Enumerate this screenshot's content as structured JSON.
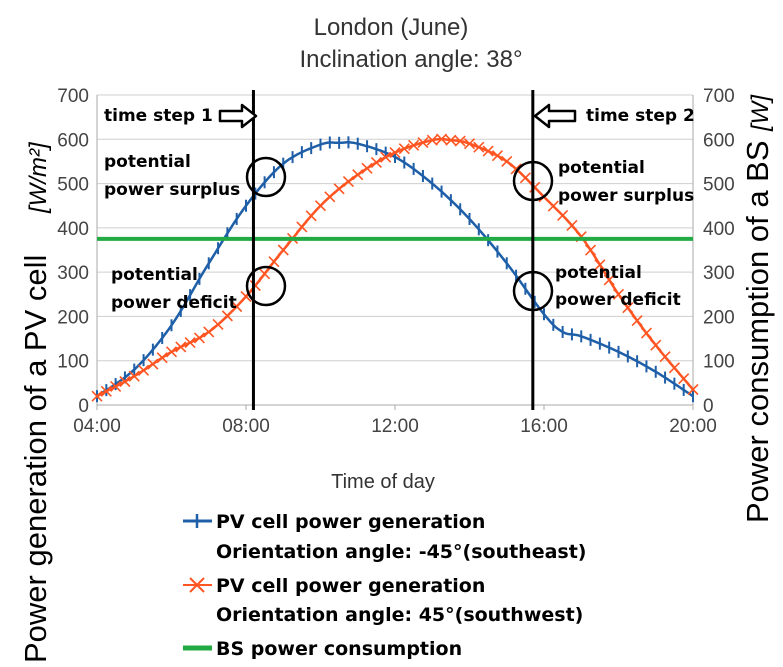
{
  "chart_data": {
    "type": "line",
    "title": "London (June)",
    "subtitle": "Inclination angle: 38°",
    "xlabel": "Time of day",
    "ylabel_left": "Power  generation of a PV cell",
    "ylabel_left_unit": "[W/m²]",
    "ylabel_right": "Power consumption of a BS",
    "ylabel_right_unit": "[W]",
    "xlim": [
      4,
      20
    ],
    "ylim": [
      0,
      700
    ],
    "x_ticks": [
      {
        "value": 4,
        "label": "04:00"
      },
      {
        "value": 8,
        "label": "08:00"
      },
      {
        "value": 12,
        "label": "12:00"
      },
      {
        "value": 16,
        "label": "16:00"
      },
      {
        "value": 20,
        "label": "20:00"
      }
    ],
    "y_ticks": [
      "0",
      "100",
      "200",
      "300",
      "400",
      "500",
      "600",
      "700"
    ],
    "grid": "horizontal",
    "series": [
      {
        "name": "PV cell power generation",
        "name_line2": "Orientation angle: -45°(southeast)",
        "color": "#1f5fa8",
        "marker": "plus",
        "points": [
          [
            4.0,
            20
          ],
          [
            5.0,
            80
          ],
          [
            6.0,
            180
          ],
          [
            7.0,
            320
          ],
          [
            8.0,
            450
          ],
          [
            9.0,
            545
          ],
          [
            10.0,
            588
          ],
          [
            10.5,
            592
          ],
          [
            11.0,
            590
          ],
          [
            12.0,
            560
          ],
          [
            13.0,
            500
          ],
          [
            14.0,
            420
          ],
          [
            15.0,
            320
          ],
          [
            16.0,
            205
          ],
          [
            16.5,
            165
          ],
          [
            17.0,
            155
          ],
          [
            18.0,
            120
          ],
          [
            19.0,
            75
          ],
          [
            20.0,
            20
          ]
        ]
      },
      {
        "name": "PV cell power generation",
        "name_line2": "Orientation angle: 45°(southwest)",
        "color": "#ff5522",
        "marker": "x",
        "points": [
          [
            4.0,
            20
          ],
          [
            5.0,
            65
          ],
          [
            6.0,
            120
          ],
          [
            7.0,
            165
          ],
          [
            8.0,
            245
          ],
          [
            9.0,
            350
          ],
          [
            10.0,
            450
          ],
          [
            11.0,
            520
          ],
          [
            12.0,
            570
          ],
          [
            13.0,
            598
          ],
          [
            13.5,
            598
          ],
          [
            14.0,
            590
          ],
          [
            15.0,
            550
          ],
          [
            16.0,
            470
          ],
          [
            17.0,
            380
          ],
          [
            18.0,
            250
          ],
          [
            19.0,
            135
          ],
          [
            20.0,
            35
          ]
        ]
      },
      {
        "name": "BS power consumption",
        "color": "#22aa44",
        "constant": 375
      }
    ],
    "vertical_lines": [
      8.2,
      15.7
    ],
    "annotations": {
      "time_step_1": "time step 1",
      "time_step_2": "time step 2",
      "surplus_line1": "potential",
      "surplus_line2": "power surplus",
      "deficit_line1": "potential",
      "deficit_line2": "power deficit"
    },
    "legend_placement": "bottom"
  }
}
